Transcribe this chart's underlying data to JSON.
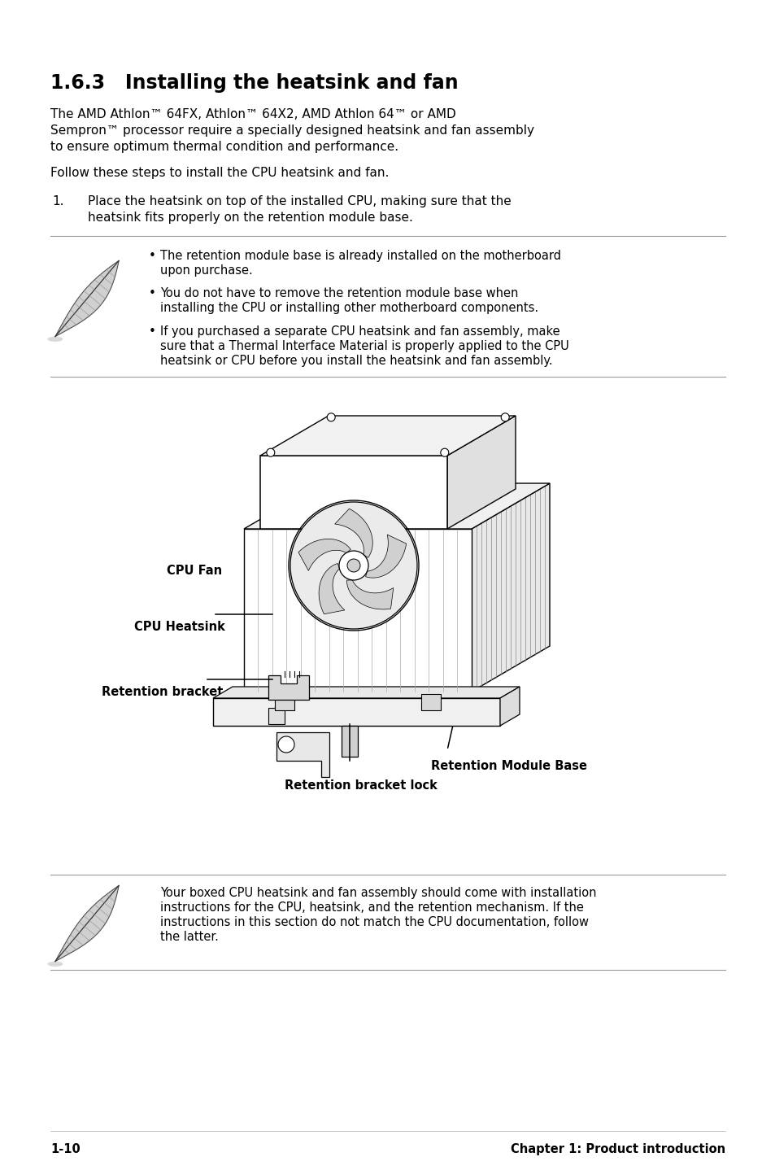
{
  "title": "1.6.3   Installing the heatsink and fan",
  "bg_color": "#ffffff",
  "line1": "The AMD Athlon™ 64FX, Athlon™ 64X2, AMD Athlon 64™ or AMD",
  "line2": "Sempron™ processor require a specially designed heatsink and fan assembly",
  "line3": "to ensure optimum thermal condition and performance.",
  "line4": "Follow these steps to install the CPU heatsink and fan.",
  "step1_num": "1.",
  "step1_line1": "Place the heatsink on top of the installed CPU, making sure that the",
  "step1_line2": "heatsink fits properly on the retention module base.",
  "b1l1": "The retention module base is already installed on the motherboard",
  "b1l2": "upon purchase.",
  "b2l1": "You do not have to remove the retention module base when",
  "b2l2": "installing the CPU or installing other motherboard components.",
  "b3l1": "If you purchased a separate CPU heatsink and fan assembly, make",
  "b3l2": "sure that a Thermal Interface Material is properly applied to the CPU",
  "b3l3": "heatsink or CPU before you install the heatsink and fan assembly.",
  "label_cpu_fan": "CPU Fan",
  "label_cpu_heatsink": "CPU Heatsink",
  "label_ret_bracket": "Retention bracket",
  "label_ret_lock": "Retention bracket lock",
  "label_ret_base": "Retention Module Base",
  "note2_l1": "Your boxed CPU heatsink and fan assembly should come with installation",
  "note2_l2": "instructions for the CPU, heatsink, and the retention mechanism. If the",
  "note2_l3": "instructions in this section do not match the CPU documentation, follow",
  "note2_l4": "the latter.",
  "footer_left": "1-10",
  "footer_right": "Chapter 1: Product introduction",
  "ML": 62,
  "MR": 892,
  "PH": 1438
}
